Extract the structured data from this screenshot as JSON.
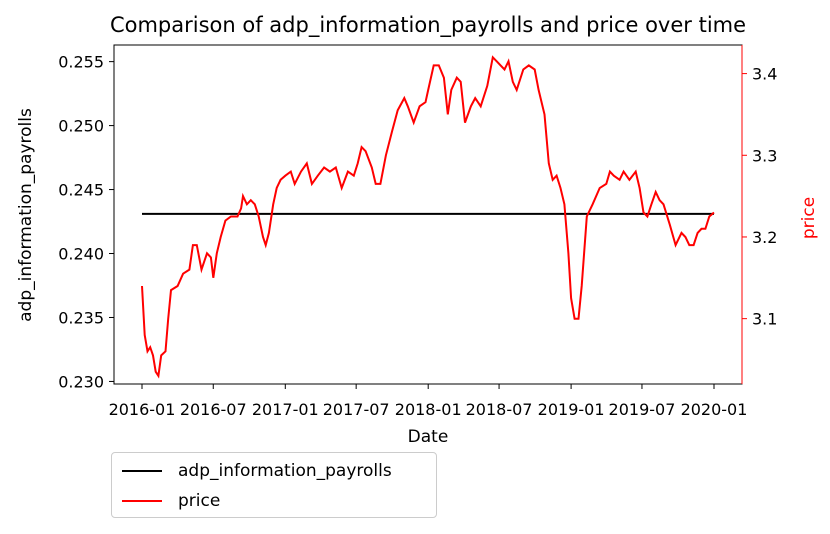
{
  "chart_data": {
    "type": "line",
    "title": "Comparison of adp_information_payrolls and price over time",
    "xlabel": "Date",
    "ylabel_left": "adp_information_payrolls",
    "ylabel_right": "price",
    "x_range": [
      "2016-01-01",
      "2020-01-01"
    ],
    "x_ticks": [
      "2016-01",
      "2016-07",
      "2017-01",
      "2017-07",
      "2018-01",
      "2018-07",
      "2019-01",
      "2019-07",
      "2020-01"
    ],
    "ylim_left": [
      0.2298,
      0.2563
    ],
    "yticks_left": [
      "0.230",
      "0.235",
      "0.240",
      "0.245",
      "0.250",
      "0.255"
    ],
    "ylim_right": [
      3.02,
      3.435
    ],
    "yticks_right": [
      "3.1",
      "3.2",
      "3.3",
      "3.4"
    ],
    "grid": false,
    "legend_placement": "below-left",
    "series": [
      {
        "name": "adp_information_payrolls",
        "axis": "left",
        "color": "#000000",
        "points": [
          [
            "2016-01-01",
            0.2431
          ],
          [
            "2020-01-01",
            0.2431
          ]
        ]
      },
      {
        "name": "price",
        "axis": "right",
        "color": "#ff0000",
        "points": [
          [
            "2016-01-01",
            3.14
          ],
          [
            "2016-01-08",
            3.08
          ],
          [
            "2016-01-15",
            3.06
          ],
          [
            "2016-01-22",
            3.065
          ],
          [
            "2016-01-29",
            3.055
          ],
          [
            "2016-02-05",
            3.035
          ],
          [
            "2016-02-12",
            3.03
          ],
          [
            "2016-02-19",
            3.055
          ],
          [
            "2016-03-01",
            3.06
          ],
          [
            "2016-03-08",
            3.1
          ],
          [
            "2016-03-15",
            3.135
          ],
          [
            "2016-04-01",
            3.14
          ],
          [
            "2016-04-15",
            3.155
          ],
          [
            "2016-05-01",
            3.16
          ],
          [
            "2016-05-10",
            3.19
          ],
          [
            "2016-05-20",
            3.19
          ],
          [
            "2016-06-01",
            3.16
          ],
          [
            "2016-06-15",
            3.18
          ],
          [
            "2016-06-25",
            3.175
          ],
          [
            "2016-07-01",
            3.15
          ],
          [
            "2016-07-10",
            3.18
          ],
          [
            "2016-07-20",
            3.2
          ],
          [
            "2016-08-01",
            3.22
          ],
          [
            "2016-08-15",
            3.225
          ],
          [
            "2016-09-01",
            3.225
          ],
          [
            "2016-09-10",
            3.235
          ],
          [
            "2016-09-15",
            3.25
          ],
          [
            "2016-09-25",
            3.24
          ],
          [
            "2016-10-05",
            3.245
          ],
          [
            "2016-10-15",
            3.24
          ],
          [
            "2016-10-25",
            3.225
          ],
          [
            "2016-11-05",
            3.2
          ],
          [
            "2016-11-12",
            3.19
          ],
          [
            "2016-11-20",
            3.205
          ],
          [
            "2016-12-01",
            3.24
          ],
          [
            "2016-12-10",
            3.26
          ],
          [
            "2016-12-20",
            3.27
          ],
          [
            "2017-01-01",
            3.275
          ],
          [
            "2017-01-15",
            3.28
          ],
          [
            "2017-01-25",
            3.265
          ],
          [
            "2017-02-10",
            3.28
          ],
          [
            "2017-02-25",
            3.29
          ],
          [
            "2017-03-10",
            3.265
          ],
          [
            "2017-03-25",
            3.275
          ],
          [
            "2017-04-10",
            3.285
          ],
          [
            "2017-04-25",
            3.28
          ],
          [
            "2017-05-10",
            3.285
          ],
          [
            "2017-05-25",
            3.26
          ],
          [
            "2017-06-10",
            3.28
          ],
          [
            "2017-06-25",
            3.275
          ],
          [
            "2017-07-05",
            3.29
          ],
          [
            "2017-07-15",
            3.31
          ],
          [
            "2017-07-25",
            3.305
          ],
          [
            "2017-08-10",
            3.285
          ],
          [
            "2017-08-20",
            3.265
          ],
          [
            "2017-09-01",
            3.265
          ],
          [
            "2017-09-15",
            3.3
          ],
          [
            "2017-10-01",
            3.33
          ],
          [
            "2017-10-15",
            3.355
          ],
          [
            "2017-11-01",
            3.37
          ],
          [
            "2017-11-10",
            3.36
          ],
          [
            "2017-11-25",
            3.34
          ],
          [
            "2017-12-10",
            3.36
          ],
          [
            "2017-12-25",
            3.365
          ],
          [
            "2018-01-01",
            3.38
          ],
          [
            "2018-01-15",
            3.41
          ],
          [
            "2018-01-28",
            3.41
          ],
          [
            "2018-02-10",
            3.395
          ],
          [
            "2018-02-20",
            3.35
          ],
          [
            "2018-03-01",
            3.38
          ],
          [
            "2018-03-15",
            3.395
          ],
          [
            "2018-03-25",
            3.39
          ],
          [
            "2018-04-05",
            3.34
          ],
          [
            "2018-04-20",
            3.36
          ],
          [
            "2018-05-01",
            3.37
          ],
          [
            "2018-05-15",
            3.36
          ],
          [
            "2018-06-01",
            3.385
          ],
          [
            "2018-06-15",
            3.42
          ],
          [
            "2018-06-25",
            3.415
          ],
          [
            "2018-07-05",
            3.41
          ],
          [
            "2018-07-15",
            3.405
          ],
          [
            "2018-07-25",
            3.415
          ],
          [
            "2018-08-05",
            3.39
          ],
          [
            "2018-08-15",
            3.38
          ],
          [
            "2018-09-01",
            3.405
          ],
          [
            "2018-09-15",
            3.41
          ],
          [
            "2018-09-30",
            3.405
          ],
          [
            "2018-10-10",
            3.38
          ],
          [
            "2018-10-25",
            3.35
          ],
          [
            "2018-11-05",
            3.29
          ],
          [
            "2018-11-15",
            3.27
          ],
          [
            "2018-11-25",
            3.275
          ],
          [
            "2018-12-05",
            3.26
          ],
          [
            "2018-12-15",
            3.24
          ],
          [
            "2018-12-25",
            3.18
          ],
          [
            "2019-01-01",
            3.125
          ],
          [
            "2019-01-10",
            3.1
          ],
          [
            "2019-01-20",
            3.1
          ],
          [
            "2019-01-28",
            3.14
          ],
          [
            "2019-02-10",
            3.225
          ],
          [
            "2019-02-25",
            3.24
          ],
          [
            "2019-03-15",
            3.26
          ],
          [
            "2019-04-01",
            3.265
          ],
          [
            "2019-04-10",
            3.28
          ],
          [
            "2019-04-20",
            3.275
          ],
          [
            "2019-05-05",
            3.27
          ],
          [
            "2019-05-15",
            3.28
          ],
          [
            "2019-05-30",
            3.27
          ],
          [
            "2019-06-15",
            3.28
          ],
          [
            "2019-06-25",
            3.26
          ],
          [
            "2019-07-05",
            3.23
          ],
          [
            "2019-07-15",
            3.225
          ],
          [
            "2019-07-25",
            3.24
          ],
          [
            "2019-08-05",
            3.255
          ],
          [
            "2019-08-15",
            3.245
          ],
          [
            "2019-08-25",
            3.24
          ],
          [
            "2019-09-10",
            3.215
          ],
          [
            "2019-09-25",
            3.19
          ],
          [
            "2019-10-10",
            3.205
          ],
          [
            "2019-10-20",
            3.2
          ],
          [
            "2019-10-30",
            3.19
          ],
          [
            "2019-11-10",
            3.19
          ],
          [
            "2019-11-20",
            3.205
          ],
          [
            "2019-11-30",
            3.21
          ],
          [
            "2019-12-10",
            3.21
          ],
          [
            "2019-12-20",
            3.225
          ],
          [
            "2020-01-01",
            3.23
          ]
        ]
      }
    ]
  }
}
